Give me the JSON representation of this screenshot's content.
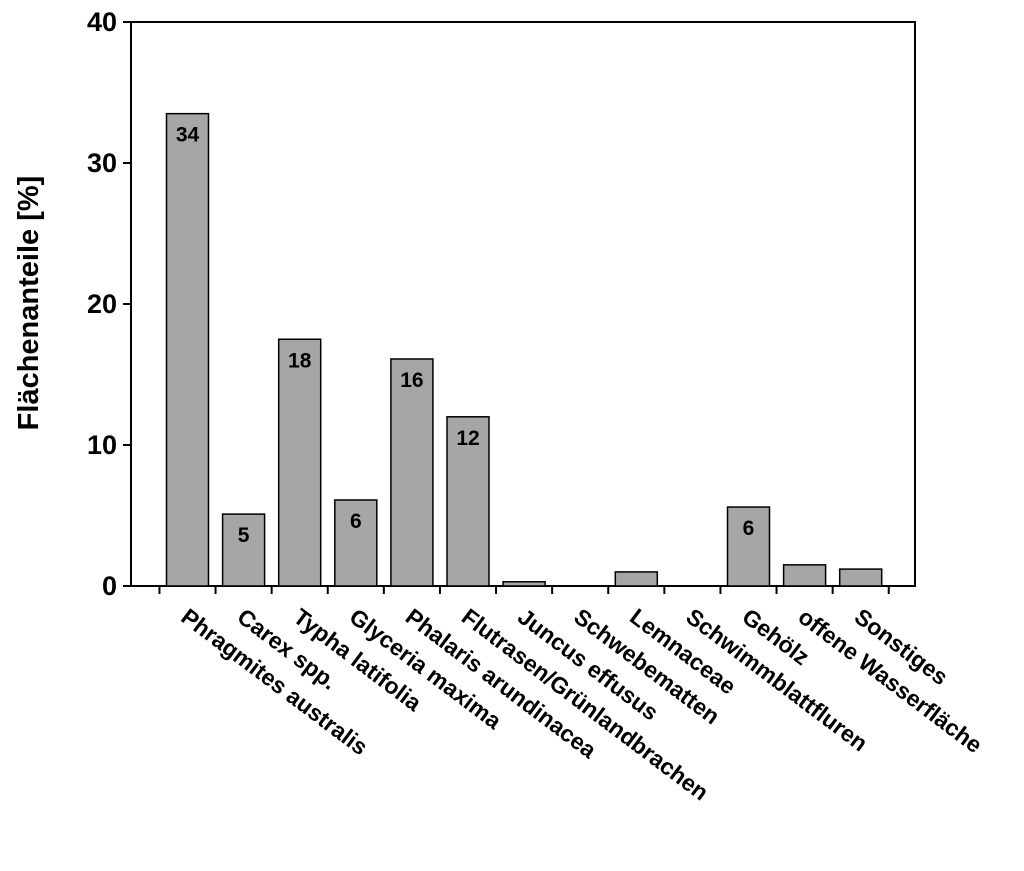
{
  "chart_data": {
    "type": "bar",
    "title": "",
    "xlabel": "",
    "ylabel": "Flächenanteile [%]",
    "ylim": [
      0,
      40
    ],
    "yticks": [
      0,
      10,
      20,
      30,
      40
    ],
    "grid": false,
    "bar_color": "#a6a6a6",
    "categories": [
      "Phragmites australis",
      "Carex spp.",
      "Typha latifolia",
      "Glyceria maxima",
      "Phalaris arundinacea",
      "Flutrasen/Grünlandbrachen",
      "Juncus effusus",
      "Schwebematten",
      "Lemnaceae",
      "Schwimmblattfluren",
      "Gehölz",
      "offene Wasserfläche",
      "Sonstiges"
    ],
    "values": [
      33.5,
      5.1,
      17.5,
      6.1,
      16.1,
      12.0,
      0.3,
      0,
      1.0,
      0,
      5.6,
      1.5,
      1.2
    ],
    "data_labels": [
      "34",
      "5",
      "18",
      "6",
      "16",
      "12",
      "",
      "",
      "",
      "",
      "6",
      "",
      ""
    ]
  }
}
